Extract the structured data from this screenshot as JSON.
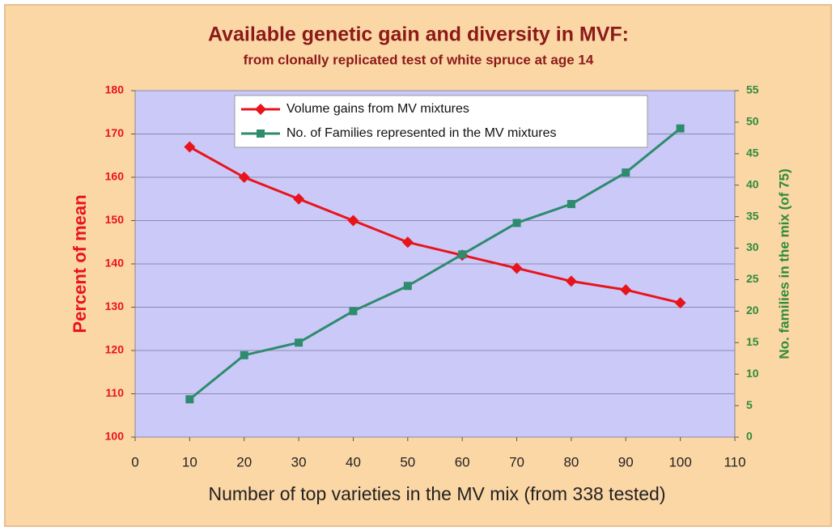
{
  "chart_data": {
    "type": "line",
    "title": "Available genetic gain and diversity in MVF:",
    "subtitle": "from clonally replicated test of white spruce at age 14",
    "x_label": "Number of top varieties in the MV mix (from 338 tested)",
    "y_label": "Percent of mean",
    "y2_label": "No. families in the mix (of 75)",
    "x": [
      10,
      20,
      30,
      40,
      50,
      60,
      70,
      80,
      90,
      100
    ],
    "series": [
      {
        "name": "Volume gains from MV mixtures",
        "color": "#e8141c",
        "marker": "diamond",
        "axis": "y",
        "values": [
          167,
          160,
          155,
          150,
          145,
          142,
          139,
          136,
          134,
          131
        ]
      },
      {
        "name": "No. of Families represented in the MV mixtures",
        "color": "#2e8b6e",
        "marker": "square",
        "axis": "y2",
        "values": [
          6,
          13,
          15,
          20,
          24,
          29,
          34,
          37,
          42,
          49
        ]
      }
    ],
    "xlim": [
      0,
      110
    ],
    "xticks": [
      0,
      10,
      20,
      30,
      40,
      50,
      60,
      70,
      80,
      90,
      100,
      110
    ],
    "ylim": [
      100,
      180
    ],
    "yticks": [
      100,
      110,
      120,
      130,
      140,
      150,
      160,
      170,
      180
    ],
    "y2lim": [
      0,
      55
    ],
    "y2ticks": [
      0,
      5,
      10,
      15,
      20,
      25,
      30,
      35,
      40,
      45,
      50,
      55
    ],
    "grid": true,
    "legend": "top"
  }
}
